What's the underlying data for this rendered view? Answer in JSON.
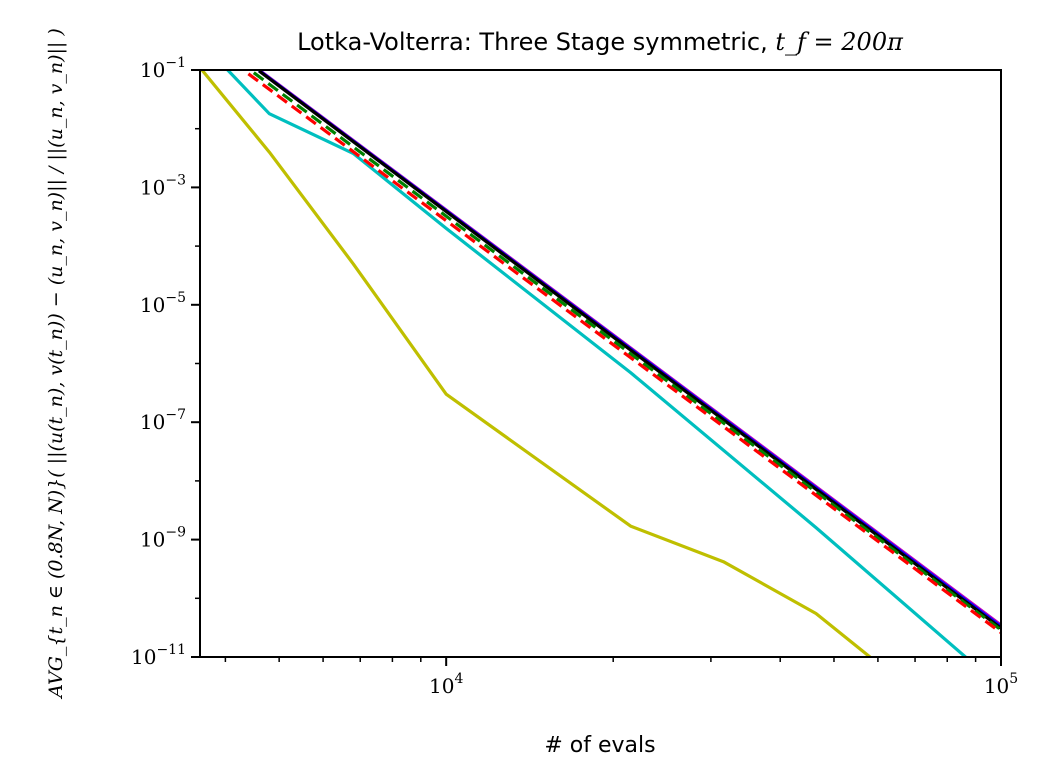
{
  "chart_data": {
    "type": "line",
    "title": "Lotka-Volterra: Three Stage symmetric, ",
    "title_math": "t_f = 200π",
    "xlabel": "# of evals",
    "ylabel": "AVG_{t_n ∈ (0.8N, N)}( ||(u(t_n), v(t_n)) − (u_n, v_n)|| / ||(u_n, v_n)|| )",
    "x_scale": "log",
    "y_scale": "log",
    "xlim": [
      3600,
      100000
    ],
    "ylim": [
      1e-11,
      0.1
    ],
    "x_ticks": [
      {
        "value": 10000,
        "base": "10",
        "exp": "4"
      },
      {
        "value": 100000,
        "base": "10",
        "exp": "5"
      }
    ],
    "y_ticks": [
      {
        "value": 0.1,
        "base": "10",
        "exp": "−1"
      },
      {
        "value": 0.001,
        "base": "10",
        "exp": "−3"
      },
      {
        "value": 1e-05,
        "base": "10",
        "exp": "−5"
      },
      {
        "value": 1e-07,
        "base": "10",
        "exp": "−7"
      },
      {
        "value": 1e-09,
        "base": "10",
        "exp": "−9"
      },
      {
        "value": 1e-11,
        "base": "10",
        "exp": "−11"
      }
    ],
    "grid": false,
    "legend": "none",
    "series": [
      {
        "color": "#bfbf00",
        "dash": "solid",
        "x": [
          3600,
          4800,
          6800,
          10000,
          21500,
          31600,
          46400,
          68000
        ],
        "y": [
          0.11,
          0.004,
          5e-05,
          3e-07,
          1.7e-09,
          4.2e-10,
          5.5e-11,
          3e-12
        ]
      },
      {
        "color": "#00bfbf",
        "dash": "solid",
        "x": [
          4000,
          4800,
          6800,
          10000,
          21500,
          46400,
          100000
        ],
        "y": [
          0.11,
          0.018,
          0.0038,
          0.0002,
          7e-07,
          1.6e-09,
          3e-12
        ]
      },
      {
        "color": "#bf00bf",
        "dash": "solid",
        "x": [
          4600,
          100000
        ],
        "y": [
          0.1,
          3.5e-11
        ]
      },
      {
        "color": "#0000ff",
        "dash": "solid",
        "x": [
          4600,
          100000
        ],
        "y": [
          0.098,
          3.3e-11
        ]
      },
      {
        "color": "#000000",
        "dash": "solid",
        "x": [
          4600,
          100000
        ],
        "y": [
          0.096,
          3.1e-11
        ]
      },
      {
        "color": "#008000",
        "dash": "dashed",
        "x": [
          4500,
          100000
        ],
        "y": [
          0.09,
          2.9e-11
        ]
      },
      {
        "color": "#ff0000",
        "dash": "dashed",
        "x": [
          4400,
          100000
        ],
        "y": [
          0.086,
          2.6e-11
        ]
      }
    ]
  }
}
